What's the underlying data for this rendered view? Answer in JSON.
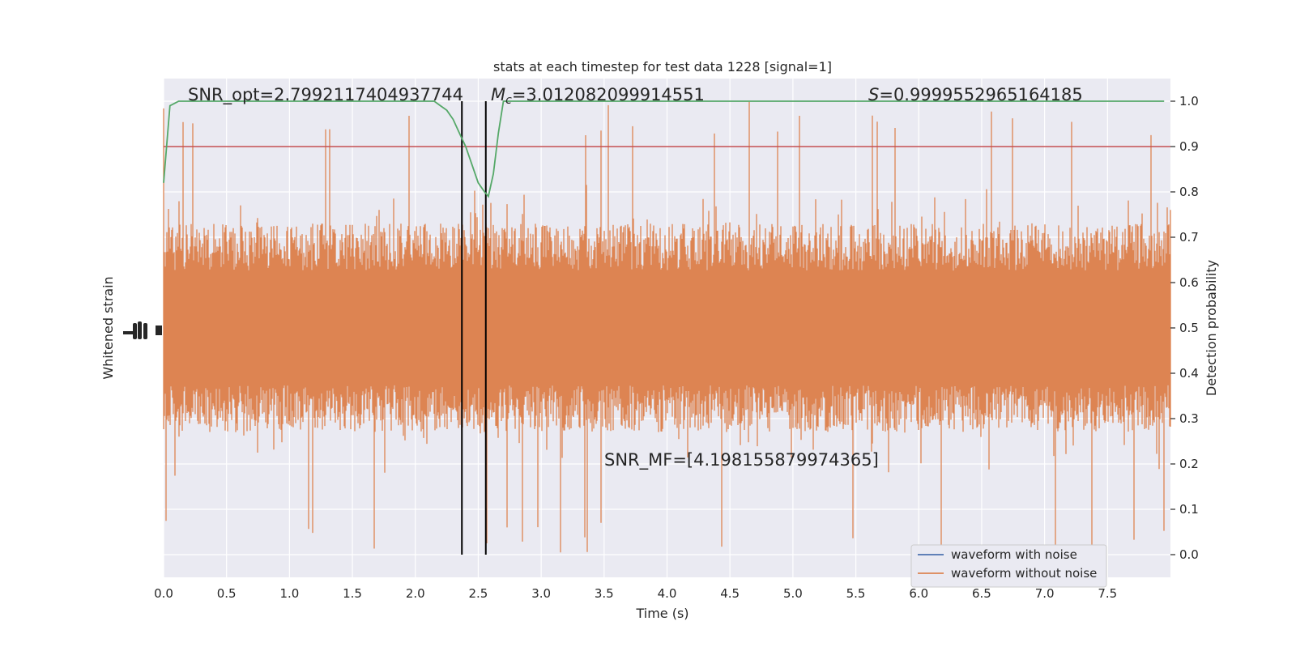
{
  "chart_data": {
    "type": "line",
    "title": "stats at each timestep for test data 1228 [signal=1]",
    "xlabel": "Time (s)",
    "ylabel_left": "Whitened strain",
    "ylabel_right": "Detection probability",
    "xlim": [
      0.0,
      8.0
    ],
    "ylim_right": [
      -0.05,
      1.05
    ],
    "x_ticks": [
      "0.0",
      "0.5",
      "1.0",
      "1.5",
      "2.0",
      "2.5",
      "3.0",
      "3.5",
      "4.0",
      "4.5",
      "5.0",
      "5.5",
      "6.0",
      "6.5",
      "7.0",
      "7.5"
    ],
    "y_ticks_right": [
      "0.0",
      "0.1",
      "0.2",
      "0.3",
      "0.4",
      "0.5",
      "0.6",
      "0.7",
      "0.8",
      "0.9",
      "1.0"
    ],
    "grid": true,
    "legend_position": "lower-right",
    "annotations": {
      "snr_opt": "SNR_opt=2.7992117404937744",
      "mc_symbol": "M",
      "mc_subscript": "c",
      "mc_value": "=3.012082099914551",
      "s_symbol": "S",
      "s_value": "=0.9999552965164185",
      "snr_mf": "SNR_MF=[4.198155879974365]"
    },
    "series": [
      {
        "name": "waveform with noise",
        "color": "#4c72b0"
      },
      {
        "name": "waveform without noise",
        "color": "#dd8452"
      }
    ],
    "threshold": {
      "y": 0.9,
      "color": "#c44e52"
    },
    "vlines": [
      2.37,
      2.56
    ],
    "detection_probability": {
      "color": "#55a868",
      "x": [
        0.0,
        0.05,
        0.12,
        2.0,
        2.1,
        2.15,
        2.2,
        2.25,
        2.3,
        2.35,
        2.4,
        2.45,
        2.5,
        2.55,
        2.58,
        2.62,
        2.66,
        2.7,
        2.8,
        3.5,
        7.95
      ],
      "y": [
        0.82,
        0.99,
        1.0,
        1.0,
        1.0,
        1.0,
        0.99,
        0.98,
        0.96,
        0.93,
        0.9,
        0.86,
        0.82,
        0.8,
        0.79,
        0.84,
        0.93,
        1.0,
        1.0,
        1.0,
        1.0
      ]
    },
    "strain_envelope_right_axis_units": {
      "center": 0.5,
      "typical_amplitude": 0.23,
      "max_top": 1.0,
      "min_bottom": 0.0
    }
  }
}
